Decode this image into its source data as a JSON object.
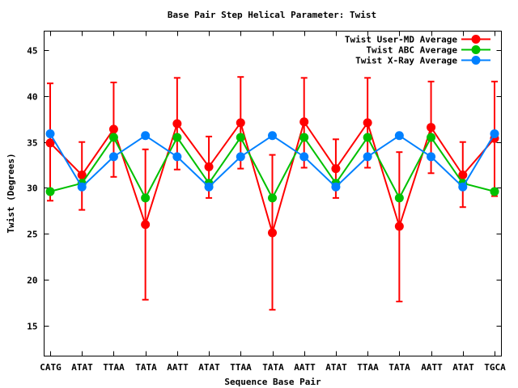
{
  "chart_data": {
    "type": "line",
    "title": "Base Pair Step Helical Parameter: Twist",
    "xlabel": "Sequence Base Pair",
    "ylabel": "Twist (Degrees)",
    "ylim": [
      11.65,
      47.1
    ],
    "yticks": [
      15,
      20,
      25,
      30,
      35,
      40,
      45
    ],
    "grid": false,
    "legend_position": "top-right",
    "categories": [
      "CATG",
      "ATAT",
      "TTAA",
      "TATA",
      "AATT",
      "ATAT",
      "TTAA",
      "TATA",
      "AATT",
      "ATAT",
      "TTAA",
      "TATA",
      "AATT",
      "ATAT",
      "TGCA"
    ],
    "series": [
      {
        "name": "Twist User-MD Average",
        "color": "#ff0000",
        "values": [
          34.9,
          31.4,
          36.4,
          26.0,
          37.0,
          32.3,
          37.1,
          25.1,
          37.2,
          32.1,
          37.1,
          25.8,
          36.6,
          31.4,
          35.4
        ],
        "error_low": [
          28.6,
          27.6,
          31.2,
          17.8,
          32.0,
          28.9,
          32.1,
          16.7,
          32.2,
          28.9,
          32.2,
          17.6,
          31.6,
          27.9,
          29.1
        ],
        "error_high": [
          41.4,
          35.0,
          41.5,
          34.2,
          42.0,
          35.6,
          42.1,
          33.6,
          42.0,
          35.3,
          42.0,
          33.9,
          41.6,
          35.0,
          41.6
        ]
      },
      {
        "name": "Twist ABC Average",
        "color": "#00c000",
        "values": [
          29.6,
          30.5,
          35.5,
          28.9,
          35.5,
          30.5,
          35.5,
          28.9,
          35.5,
          30.5,
          35.5,
          28.9,
          35.5,
          30.5,
          29.6
        ]
      },
      {
        "name": "Twist X-Ray Average",
        "color": "#0080ff",
        "values": [
          35.9,
          30.1,
          33.4,
          35.7,
          33.4,
          30.1,
          33.4,
          35.7,
          33.4,
          30.1,
          33.4,
          35.7,
          33.4,
          30.1,
          35.9
        ]
      }
    ]
  }
}
